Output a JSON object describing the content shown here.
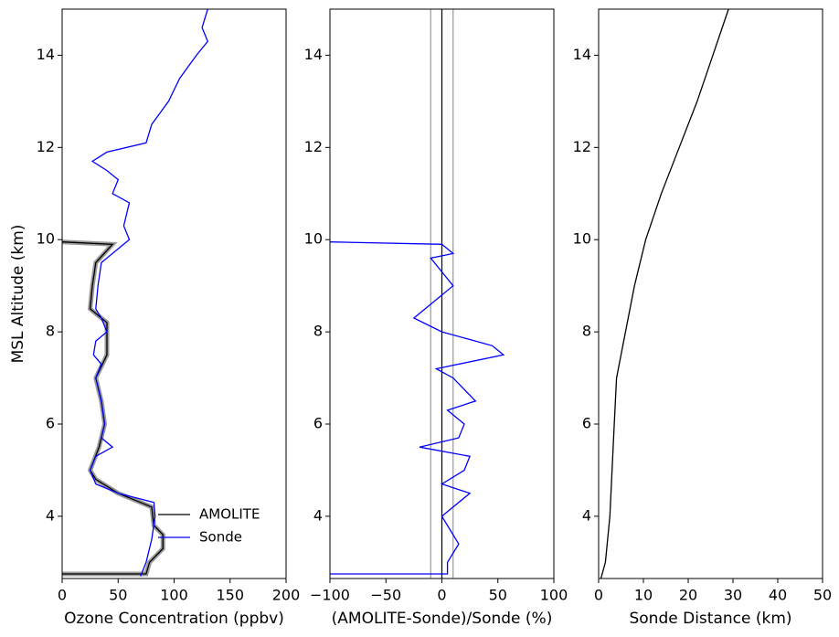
{
  "chart_data": [
    {
      "type": "line",
      "xlabel": "Ozone Concentration (ppbv)",
      "ylabel": "MSL Altitude (km)",
      "xlim": [
        0,
        200
      ],
      "ylim": [
        2.65,
        15
      ],
      "xticks": [
        0,
        50,
        100,
        150,
        200
      ],
      "yticks": [
        4,
        6,
        8,
        10,
        12,
        14
      ],
      "legend": "lower right",
      "series": [
        {
          "name": "AMOLITE",
          "color": "#000000",
          "x": [
            0,
            75,
            78,
            90,
            90,
            82,
            80,
            50,
            30,
            25,
            33,
            38,
            35,
            30,
            40,
            40,
            40,
            25,
            27,
            30,
            45,
            0
          ],
          "y": [
            2.75,
            2.75,
            3.0,
            3.3,
            3.6,
            3.8,
            4.2,
            4.5,
            4.8,
            5.0,
            5.5,
            6.0,
            6.5,
            7.0,
            7.5,
            7.8,
            8.2,
            8.5,
            9.0,
            9.5,
            9.9,
            9.95
          ]
        },
        {
          "name": "Sonde",
          "color": "#0000ff",
          "x": [
            70,
            75,
            80,
            83,
            82,
            50,
            30,
            25,
            30,
            45,
            35,
            38,
            35,
            30,
            35,
            28,
            30,
            40,
            35,
            30,
            32,
            35,
            60,
            55,
            60,
            45,
            50,
            40,
            27,
            40,
            75,
            80,
            95,
            105,
            120,
            130,
            125,
            130
          ],
          "y": [
            2.7,
            3.0,
            3.5,
            4.0,
            4.3,
            4.5,
            4.7,
            5.0,
            5.3,
            5.5,
            5.7,
            6.0,
            6.5,
            7.0,
            7.3,
            7.5,
            7.8,
            8.0,
            8.3,
            8.5,
            9.0,
            9.5,
            10.0,
            10.3,
            10.8,
            11.0,
            11.3,
            11.5,
            11.7,
            11.9,
            12.1,
            12.5,
            13.0,
            13.5,
            14.0,
            14.3,
            14.6,
            15.0
          ]
        }
      ]
    },
    {
      "type": "line",
      "xlabel": "(AMOLITE-Sonde)/Sonde (%)",
      "xlim": [
        -100,
        100
      ],
      "ylim": [
        2.65,
        15
      ],
      "xticks": [
        {
          "value": -100,
          "label": "−100"
        },
        {
          "value": -50,
          "label": "−50"
        },
        0,
        50,
        100
      ],
      "yticks": [
        4,
        6,
        8,
        10,
        12,
        14
      ],
      "reference_lines": [
        -10,
        0,
        10
      ],
      "series": [
        {
          "color": "#0000ff",
          "x": [
            -100,
            5,
            5,
            15,
            5,
            0,
            25,
            0,
            20,
            25,
            -20,
            15,
            20,
            5,
            30,
            10,
            -5,
            55,
            45,
            0,
            -25,
            -10,
            10,
            0,
            -10,
            10,
            0,
            -100
          ],
          "y": [
            2.75,
            2.75,
            3.0,
            3.4,
            3.8,
            4.0,
            4.5,
            4.7,
            5.0,
            5.3,
            5.5,
            5.7,
            6.0,
            6.3,
            6.5,
            7.0,
            7.2,
            7.5,
            7.7,
            8.0,
            8.3,
            8.6,
            9.0,
            9.3,
            9.6,
            9.7,
            9.9,
            9.95
          ]
        }
      ]
    },
    {
      "type": "line",
      "xlabel": "Sonde Distance (km)",
      "xlim": [
        0,
        50
      ],
      "ylim": [
        2.65,
        15
      ],
      "xticks": [
        0,
        10,
        20,
        30,
        40,
        50
      ],
      "yticks": [
        4,
        6,
        8,
        10,
        12,
        14
      ],
      "series": [
        {
          "color": "#000000",
          "x": [
            0.5,
            1.5,
            2.5,
            3,
            3.5,
            4,
            5,
            6,
            8,
            10.5,
            14,
            18,
            22,
            25.5,
            29
          ],
          "y": [
            2.65,
            3,
            4,
            5,
            6,
            7,
            7.5,
            8,
            9,
            10,
            11,
            12,
            13,
            14,
            15
          ]
        }
      ]
    }
  ]
}
